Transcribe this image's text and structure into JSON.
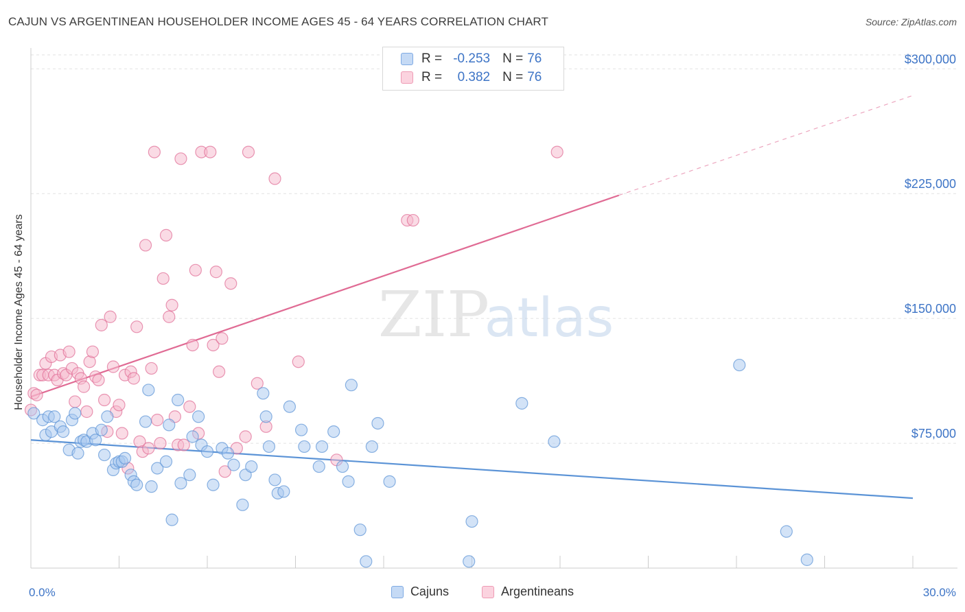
{
  "title": "CAJUN VS ARGENTINEAN HOUSEHOLDER INCOME AGES 45 - 64 YEARS CORRELATION CHART",
  "source": "Source: ZipAtlas.com",
  "watermark": {
    "zip": "ZIP",
    "atlas": "atlas"
  },
  "legend": {
    "rows": [
      {
        "r_label": "R =",
        "r_value": "-0.253",
        "n_label": "N =",
        "n_value": "76",
        "color": "#a8c8f0"
      },
      {
        "r_label": "R =",
        "r_value": "0.382",
        "n_label": "N =",
        "n_value": "76",
        "color": "#f5b8cb"
      }
    ]
  },
  "bottom_legend": [
    {
      "label": "Cajuns",
      "color": "#a8c8f0"
    },
    {
      "label": "Argentineans",
      "color": "#f5b8cb"
    }
  ],
  "chart_data": {
    "type": "scatter",
    "title": "CAJUN VS ARGENTINEAN HOUSEHOLDER INCOME AGES 45 - 64 YEARS CORRELATION CHART",
    "xlabel": "",
    "ylabel": "Householder Income Ages 45 - 64 years",
    "xlim": [
      0,
      30
    ],
    "ylim": [
      0,
      312500
    ],
    "x_tick_labels": [
      "0.0%",
      "30.0%"
    ],
    "y_ticks": [
      75000,
      150000,
      225000,
      300000
    ],
    "y_tick_labels": [
      "$75,000",
      "$150,000",
      "$225,000",
      "$300,000"
    ],
    "grid": true,
    "legend_position": "top-center",
    "series": [
      {
        "name": "Cajuns",
        "color": "#5b93d6",
        "fill": "#a8c8f0",
        "trend": {
          "x": [
            0,
            30
          ],
          "y": [
            77000,
            42000
          ]
        },
        "points": [
          [
            0.1,
            93000
          ],
          [
            0.4,
            89000
          ],
          [
            0.5,
            80000
          ],
          [
            0.6,
            91000
          ],
          [
            0.7,
            82000
          ],
          [
            0.8,
            91000
          ],
          [
            1.0,
            85000
          ],
          [
            1.1,
            82000
          ],
          [
            1.3,
            71000
          ],
          [
            1.4,
            89000
          ],
          [
            1.5,
            93000
          ],
          [
            1.6,
            69000
          ],
          [
            1.7,
            76000
          ],
          [
            1.8,
            77000
          ],
          [
            1.9,
            76000
          ],
          [
            2.1,
            81000
          ],
          [
            2.2,
            77000
          ],
          [
            2.4,
            83000
          ],
          [
            2.5,
            68000
          ],
          [
            2.6,
            91000
          ],
          [
            2.8,
            59000
          ],
          [
            2.9,
            63000
          ],
          [
            3.0,
            64000
          ],
          [
            3.1,
            64000
          ],
          [
            3.2,
            66000
          ],
          [
            3.4,
            56000
          ],
          [
            3.5,
            52000
          ],
          [
            3.6,
            50000
          ],
          [
            3.9,
            88000
          ],
          [
            4.0,
            107000
          ],
          [
            4.1,
            49000
          ],
          [
            4.3,
            60000
          ],
          [
            4.6,
            64000
          ],
          [
            4.7,
            86000
          ],
          [
            4.8,
            29000
          ],
          [
            5.0,
            101000
          ],
          [
            5.1,
            51000
          ],
          [
            5.4,
            56000
          ],
          [
            5.5,
            79000
          ],
          [
            5.7,
            91000
          ],
          [
            5.8,
            74000
          ],
          [
            6.0,
            70000
          ],
          [
            6.2,
            50000
          ],
          [
            6.5,
            72000
          ],
          [
            6.7,
            69000
          ],
          [
            6.9,
            62000
          ],
          [
            7.2,
            38000
          ],
          [
            7.3,
            56000
          ],
          [
            7.5,
            61000
          ],
          [
            7.9,
            105000
          ],
          [
            8.0,
            91000
          ],
          [
            8.1,
            73000
          ],
          [
            8.3,
            53000
          ],
          [
            8.4,
            45000
          ],
          [
            8.6,
            46000
          ],
          [
            8.8,
            97000
          ],
          [
            9.2,
            83000
          ],
          [
            9.3,
            73000
          ],
          [
            9.8,
            61000
          ],
          [
            9.9,
            73000
          ],
          [
            10.3,
            82000
          ],
          [
            10.6,
            61000
          ],
          [
            10.8,
            52000
          ],
          [
            10.9,
            110000
          ],
          [
            11.2,
            23000
          ],
          [
            11.4,
            4000
          ],
          [
            11.6,
            73000
          ],
          [
            11.8,
            87000
          ],
          [
            12.2,
            52000
          ],
          [
            14.9,
            4000
          ],
          [
            15.0,
            28000
          ],
          [
            16.7,
            99000
          ],
          [
            17.8,
            76000
          ],
          [
            24.1,
            122000
          ],
          [
            25.7,
            22000
          ],
          [
            26.4,
            5000
          ]
        ]
      },
      {
        "name": "Argentineans",
        "color": "#e06b94",
        "fill": "#f5b8cb",
        "trend": {
          "x": [
            0,
            20
          ],
          "y": [
            103000,
            224000
          ],
          "dashed_x": [
            20,
            30
          ],
          "dashed_y": [
            224000,
            284000
          ]
        },
        "points": [
          [
            0.1,
            105000
          ],
          [
            0.2,
            104000
          ],
          [
            0.3,
            116000
          ],
          [
            0.4,
            116000
          ],
          [
            0.5,
            123000
          ],
          [
            0.6,
            116000
          ],
          [
            0.7,
            127000
          ],
          [
            0.8,
            116000
          ],
          [
            0.9,
            113000
          ],
          [
            1.0,
            128000
          ],
          [
            1.1,
            117000
          ],
          [
            1.2,
            116000
          ],
          [
            1.3,
            130000
          ],
          [
            1.4,
            120000
          ],
          [
            1.5,
            100000
          ],
          [
            1.6,
            117000
          ],
          [
            1.7,
            114000
          ],
          [
            1.8,
            109000
          ],
          [
            1.9,
            94000
          ],
          [
            2.0,
            124000
          ],
          [
            2.1,
            130000
          ],
          [
            2.2,
            115000
          ],
          [
            2.3,
            113000
          ],
          [
            2.4,
            146000
          ],
          [
            2.5,
            101000
          ],
          [
            2.6,
            82000
          ],
          [
            2.7,
            151000
          ],
          [
            2.8,
            121000
          ],
          [
            2.9,
            94000
          ],
          [
            3.0,
            98000
          ],
          [
            3.1,
            81000
          ],
          [
            3.2,
            116000
          ],
          [
            3.3,
            60000
          ],
          [
            3.4,
            118000
          ],
          [
            3.5,
            114000
          ],
          [
            3.6,
            145000
          ],
          [
            3.7,
            76000
          ],
          [
            3.8,
            70000
          ],
          [
            3.9,
            194000
          ],
          [
            4.0,
            72000
          ],
          [
            4.1,
            120000
          ],
          [
            4.2,
            250000
          ],
          [
            4.3,
            89000
          ],
          [
            4.4,
            75000
          ],
          [
            4.5,
            174000
          ],
          [
            4.6,
            200000
          ],
          [
            4.7,
            151000
          ],
          [
            4.8,
            158000
          ],
          [
            4.9,
            91000
          ],
          [
            5.0,
            74000
          ],
          [
            5.1,
            246000
          ],
          [
            5.2,
            74000
          ],
          [
            5.4,
            97000
          ],
          [
            5.5,
            134000
          ],
          [
            5.6,
            179000
          ],
          [
            5.7,
            81000
          ],
          [
            5.8,
            250000
          ],
          [
            6.1,
            250000
          ],
          [
            6.2,
            134000
          ],
          [
            6.3,
            178000
          ],
          [
            6.4,
            118000
          ],
          [
            6.5,
            138000
          ],
          [
            6.6,
            58000
          ],
          [
            6.8,
            171000
          ],
          [
            7.0,
            72000
          ],
          [
            7.3,
            79000
          ],
          [
            7.4,
            250000
          ],
          [
            7.7,
            111000
          ],
          [
            8.0,
            85000
          ],
          [
            8.3,
            234000
          ],
          [
            9.1,
            124000
          ],
          [
            10.4,
            65000
          ],
          [
            12.8,
            209000
          ],
          [
            13.0,
            209000
          ],
          [
            17.9,
            250000
          ],
          [
            0.0,
            95000
          ]
        ]
      }
    ]
  }
}
